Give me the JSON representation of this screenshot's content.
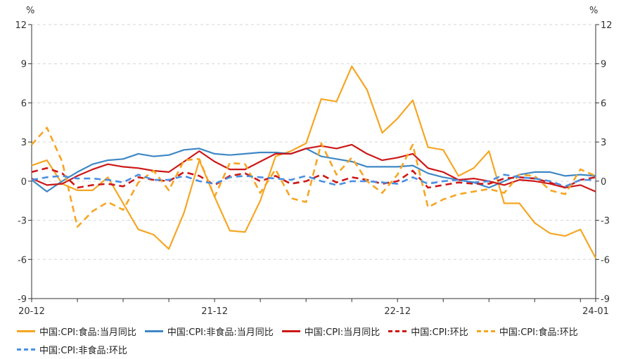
{
  "chart_data": {
    "type": "line",
    "y_unit_left": "%",
    "y_unit_right": "%",
    "ylim": [
      -9,
      12
    ],
    "yticks": [
      -9,
      -6,
      -3,
      0,
      3,
      6,
      9,
      12
    ],
    "x_tick_labels": [
      "20-12",
      "21-12",
      "22-12",
      "24-01"
    ],
    "x_tick_positions": [
      0,
      12,
      24,
      37
    ],
    "grid": true,
    "legend_position": "bottom",
    "x": [
      "20-12",
      "21-01",
      "21-02",
      "21-03",
      "21-04",
      "21-05",
      "21-06",
      "21-07",
      "21-08",
      "21-09",
      "21-10",
      "21-11",
      "21-12",
      "22-01",
      "22-02",
      "22-03",
      "22-04",
      "22-05",
      "22-06",
      "22-07",
      "22-08",
      "22-09",
      "22-10",
      "22-11",
      "22-12",
      "23-01",
      "23-02",
      "23-03",
      "23-04",
      "23-05",
      "23-06",
      "23-07",
      "23-08",
      "23-09",
      "23-10",
      "23-11",
      "23-12",
      "24-01"
    ],
    "series": [
      {
        "name": "中国:CPI:食品:当月同比",
        "color": "#F5A623",
        "dash": "solid",
        "values": [
          1.2,
          1.6,
          -0.2,
          -0.7,
          -0.7,
          0.3,
          -1.7,
          -3.7,
          -4.1,
          -5.2,
          -2.4,
          1.6,
          -1.2,
          -3.8,
          -3.9,
          -1.5,
          1.9,
          2.3,
          2.9,
          6.3,
          6.1,
          8.8,
          7.0,
          3.7,
          4.8,
          6.2,
          2.6,
          2.4,
          0.4,
          1.0,
          2.3,
          -1.7,
          -1.7,
          -3.2,
          -4.0,
          -4.2,
          -3.7,
          -5.9
        ]
      },
      {
        "name": "中国:CPI:非食品:当月同比",
        "color": "#3F88C5",
        "dash": "solid",
        "values": [
          0.1,
          -0.8,
          0.0,
          0.7,
          1.3,
          1.6,
          1.7,
          2.1,
          1.9,
          2.0,
          2.4,
          2.5,
          2.1,
          2.0,
          2.1,
          2.2,
          2.2,
          2.1,
          2.5,
          1.9,
          1.7,
          1.5,
          1.1,
          1.1,
          1.1,
          1.2,
          0.6,
          0.3,
          0.1,
          -0.1,
          -0.5,
          0.0,
          0.5,
          0.7,
          0.7,
          0.4,
          0.5,
          0.4
        ]
      },
      {
        "name": "中国:CPI:当月同比",
        "color": "#CC1818",
        "dash": "solid",
        "values": [
          0.2,
          -0.3,
          -0.2,
          0.4,
          0.9,
          1.3,
          1.1,
          1.0,
          0.8,
          0.7,
          1.5,
          2.3,
          1.5,
          0.9,
          0.9,
          1.5,
          2.1,
          2.1,
          2.5,
          2.7,
          2.5,
          2.8,
          2.1,
          1.6,
          1.8,
          2.1,
          1.0,
          0.7,
          0.1,
          0.2,
          0.0,
          -0.3,
          0.1,
          0.0,
          -0.2,
          -0.5,
          -0.3,
          -0.8
        ]
      },
      {
        "name": "中国:CPI:环比",
        "color": "#CC1818",
        "dash": "dash",
        "values": [
          0.7,
          1.0,
          0.6,
          -0.5,
          -0.3,
          -0.2,
          -0.4,
          0.3,
          0.1,
          0.0,
          0.7,
          0.4,
          -0.3,
          0.4,
          0.6,
          0.0,
          0.4,
          -0.2,
          0.0,
          0.5,
          -0.1,
          0.3,
          0.1,
          -0.2,
          0.0,
          0.8,
          -0.5,
          -0.3,
          -0.1,
          -0.2,
          -0.2,
          0.2,
          0.3,
          0.2,
          -0.1,
          -0.5,
          0.1,
          0.3
        ]
      },
      {
        "name": "中国:CPI:食品:环比",
        "color": "#F5A623",
        "dash": "dash",
        "values": [
          2.8,
          4.1,
          1.5,
          -3.5,
          -2.3,
          -1.6,
          -2.2,
          -0.1,
          0.8,
          -0.7,
          1.6,
          1.7,
          -1.2,
          1.4,
          1.3,
          -0.9,
          0.9,
          -1.3,
          -1.6,
          2.9,
          0.5,
          1.8,
          0.0,
          -0.9,
          0.5,
          2.8,
          -2.0,
          -1.4,
          -1.0,
          -0.8,
          -0.6,
          -0.9,
          0.5,
          0.4,
          -0.7,
          -1.0,
          0.9,
          0.4
        ]
      },
      {
        "name": "中国:CPI:非食品:环比",
        "color": "#4A90E2",
        "dash": "dash",
        "values": [
          0.1,
          0.3,
          0.4,
          0.2,
          0.2,
          0.1,
          -0.1,
          0.5,
          0.1,
          0.1,
          0.4,
          0.0,
          -0.2,
          0.3,
          0.4,
          0.3,
          0.2,
          0.1,
          0.4,
          0.0,
          -0.3,
          0.0,
          0.0,
          -0.1,
          -0.2,
          0.3,
          -0.2,
          0.0,
          0.1,
          -0.1,
          0.0,
          0.5,
          0.3,
          0.2,
          0.0,
          -0.4,
          0.1,
          0.1
        ]
      }
    ]
  }
}
